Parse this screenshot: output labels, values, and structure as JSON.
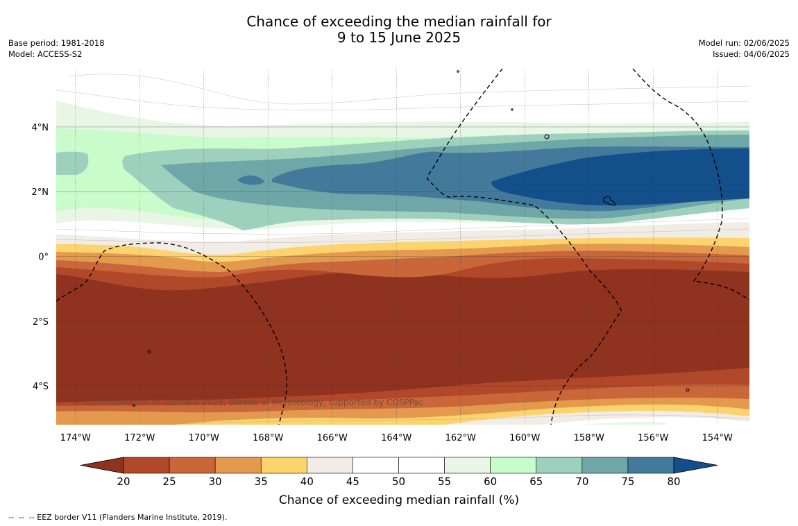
{
  "header": {
    "title_line1": "Chance of exceeding the median rainfall for",
    "title_line2": "9 to 15 June 2025",
    "base_period": "Base period: 1981-2018",
    "model": "Model: ACCESS-S2",
    "model_run": "Model run: 02/06/2025",
    "issued": "Issued: 04/06/2025"
  },
  "map": {
    "extent": {
      "lon_min": -174.6,
      "lon_max": -153.0,
      "lat_min": -5.2,
      "lat_max": 5.8
    },
    "lon_ticks": [
      {
        "value": -174,
        "label": "174°W"
      },
      {
        "value": -172,
        "label": "172°W"
      },
      {
        "value": -170,
        "label": "170°W"
      },
      {
        "value": -168,
        "label": "168°W"
      },
      {
        "value": -166,
        "label": "166°W"
      },
      {
        "value": -164,
        "label": "164°W"
      },
      {
        "value": -162,
        "label": "162°W"
      },
      {
        "value": -160,
        "label": "160°W"
      },
      {
        "value": -158,
        "label": "158°W"
      },
      {
        "value": -156,
        "label": "156°W"
      },
      {
        "value": -154,
        "label": "154°W"
      }
    ],
    "lat_ticks": [
      {
        "value": 4,
        "label": "4°N"
      },
      {
        "value": 2,
        "label": "2°N"
      },
      {
        "value": 0,
        "label": "0°"
      },
      {
        "value": -2,
        "label": "2°S"
      },
      {
        "value": -4,
        "label": "4°S"
      }
    ],
    "copyright": "© Commonwealth of Australia 2025, Bureau of Meteorology, supported by COSPPac"
  },
  "colorbar": {
    "title": "Chance of exceeding median rainfall (%)",
    "levels": [
      20,
      25,
      30,
      35,
      40,
      45,
      50,
      55,
      60,
      65,
      70,
      75,
      80
    ],
    "labels": [
      "20",
      "25",
      "30",
      "35",
      "40",
      "45",
      "50",
      "55",
      "60",
      "65",
      "70",
      "75",
      "80"
    ],
    "colors": {
      "below_20": "#8f321f",
      "20_25": "#b2482a",
      "25_30": "#c9663a",
      "30_35": "#e39a4d",
      "35_40": "#fdd36e",
      "40_45": "#f1ece6",
      "45_50": "#ffffff",
      "50_55": "#ffffff",
      "55_60": "#e9f6e6",
      "60_65": "#c9fcca",
      "65_70": "#9ed1bd",
      "70_75": "#6fa6a8",
      "75_80": "#437a9b",
      "above_80": "#124f8b"
    }
  },
  "footnote": "--  --  -- EEZ border V11 (Flanders Marine Institute, 2019)."
}
